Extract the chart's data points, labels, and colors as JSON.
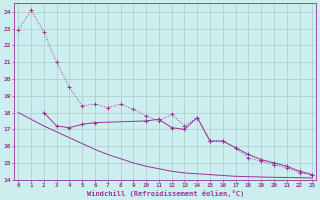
{
  "xlabel": "Windchill (Refroidissement éolien,°C)",
  "x": [
    0,
    1,
    2,
    3,
    4,
    5,
    6,
    7,
    8,
    9,
    10,
    11,
    12,
    13,
    14,
    15,
    16,
    17,
    18,
    19,
    20,
    21,
    22,
    23
  ],
  "line1_dotted": [
    22.9,
    24.1,
    22.8,
    21.0,
    19.5,
    18.4,
    18.5,
    18.3,
    18.5,
    18.2,
    17.8,
    17.5,
    17.9,
    17.2,
    17.7,
    16.3,
    16.3,
    15.9,
    15.3,
    15.1,
    14.9,
    14.7,
    14.4,
    14.3
  ],
  "line2_markers": [
    null,
    null,
    18.0,
    17.2,
    17.1,
    17.3,
    17.4,
    null,
    null,
    null,
    17.5,
    17.6,
    17.1,
    17.0,
    17.7,
    16.3,
    16.3,
    15.9,
    15.5,
    15.2,
    15.0,
    14.8,
    14.5,
    14.3
  ],
  "line3_straight": [
    18.0,
    17.6,
    17.2,
    16.85,
    16.5,
    16.15,
    15.8,
    15.5,
    15.25,
    15.0,
    14.8,
    14.65,
    14.5,
    14.4,
    14.35,
    14.3,
    14.25,
    14.2,
    14.18,
    14.16,
    14.14,
    14.13,
    14.12,
    14.1
  ],
  "bg_color": "#cceeee",
  "grid_color": "#aacccc",
  "line_color": "#993399",
  "ylim": [
    14,
    24.5
  ],
  "xlim": [
    -0.3,
    23.3
  ],
  "yticks": [
    14,
    15,
    16,
    17,
    18,
    19,
    20,
    21,
    22,
    23,
    24
  ],
  "xticks": [
    0,
    1,
    2,
    3,
    4,
    5,
    6,
    7,
    8,
    9,
    10,
    11,
    12,
    13,
    14,
    15,
    16,
    17,
    18,
    19,
    20,
    21,
    22,
    23
  ]
}
